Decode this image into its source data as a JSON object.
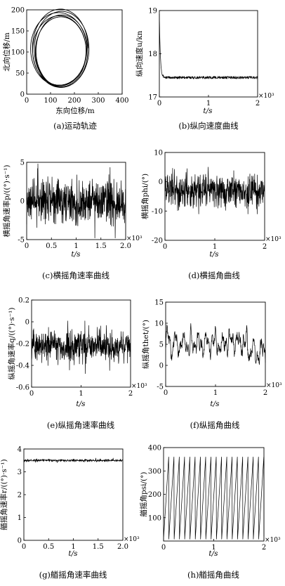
{
  "chart_data": [
    {
      "id": "a",
      "type": "line",
      "caption": "(a)运动轨迹",
      "xlabel": "东向位移/m",
      "ylabel": "北向位移/m",
      "xlim": [
        0,
        400
      ],
      "ylim": [
        0,
        200
      ],
      "xticks": [
        0,
        100,
        200,
        300,
        400
      ],
      "yticks": [
        0,
        50,
        100,
        150,
        200
      ],
      "multiplier": "",
      "series": [
        {
          "kind": "orbit",
          "center": [
            140,
            105
          ],
          "rx": [
            105,
            118
          ],
          "ry": [
            82,
            93
          ],
          "loops": 6
        }
      ]
    },
    {
      "id": "b",
      "type": "line",
      "caption": "(b)纵向速度曲线",
      "xlabel": "t/s",
      "ylabel": "纵向速度u/kn",
      "xlim": [
        0,
        2
      ],
      "ylim": [
        17,
        19
      ],
      "xticks": [
        0,
        1,
        2
      ],
      "yticks": [
        17,
        18,
        19
      ],
      "multiplier": "×10³",
      "series": [
        {
          "kind": "settle",
          "start": 18.95,
          "mean": 17.45,
          "noise": 0.03,
          "decay": 0.02
        }
      ]
    },
    {
      "id": "c",
      "type": "line",
      "caption": "(c)横摇角速率曲线",
      "xlabel": "t/s",
      "ylabel": "横摇角速率p/((°)·s⁻¹)",
      "xlim": [
        0,
        2
      ],
      "ylim": [
        -5,
        5
      ],
      "xticks": [
        0,
        0.5,
        1,
        1.5,
        2.0
      ],
      "xticklabels": [
        "0",
        "0.5",
        "1",
        "1.5",
        "2.0"
      ],
      "yticks": [
        -5,
        0,
        5
      ],
      "multiplier": "×10³",
      "series": [
        {
          "kind": "noise",
          "mean": 0,
          "amplitude": 2.0,
          "max": 4.8
        }
      ]
    },
    {
      "id": "d",
      "type": "line",
      "caption": "(d)横摇角曲线",
      "xlabel": "t/s",
      "ylabel": "横摇角phi/(°)",
      "xlim": [
        0,
        2
      ],
      "ylim": [
        -20,
        10
      ],
      "xticks": [
        0,
        1,
        2
      ],
      "yticks": [
        -20,
        -10,
        0,
        10
      ],
      "multiplier": "×10³",
      "series": [
        {
          "kind": "noise",
          "mean": -3,
          "amplitude": 4.5,
          "max": 8
        }
      ]
    },
    {
      "id": "e",
      "type": "line",
      "caption": "(e)纵摇角速率曲线",
      "xlabel": "t/s",
      "ylabel": "纵摇角速率q/((°)·s⁻¹)",
      "xlim": [
        0,
        2
      ],
      "ylim": [
        -0.6,
        0.2
      ],
      "xticks": [
        0,
        1,
        2
      ],
      "yticks": [
        -0.6,
        -0.4,
        -0.2,
        0,
        0.2
      ],
      "multiplier": "×10³",
      "series": [
        {
          "kind": "noise",
          "mean": -0.22,
          "amplitude": 0.1,
          "max": 0.3
        }
      ]
    },
    {
      "id": "f",
      "type": "line",
      "caption": "(f)纵摇角曲线",
      "xlabel": "t/s",
      "ylabel": "纵摇角thet/(°)",
      "xlim": [
        0,
        2
      ],
      "ylim": [
        -5,
        15
      ],
      "xticks": [
        0,
        1,
        2
      ],
      "yticks": [
        -5,
        0,
        5,
        10,
        15
      ],
      "multiplier": "×10³",
      "series": [
        {
          "kind": "wave",
          "mean": 5.5,
          "amplitude": 2.8,
          "max": 5
        }
      ]
    },
    {
      "id": "g",
      "type": "line",
      "caption": "(g)艏摇角速率曲线",
      "xlabel": "t/s",
      "ylabel": "艏摇角速率r/((°)·s⁻¹)",
      "xlim": [
        0,
        2
      ],
      "ylim": [
        0,
        4
      ],
      "xticks": [
        0,
        0.5,
        1,
        1.5,
        2.0
      ],
      "xticklabels": [
        "0",
        "0.5",
        "1",
        "1.5",
        "2.0"
      ],
      "yticks": [
        0,
        1,
        2,
        3,
        4
      ],
      "multiplier": "×10³",
      "series": [
        {
          "kind": "noise",
          "mean": 3.5,
          "amplitude": 0.04,
          "max": 0.1
        }
      ]
    },
    {
      "id": "h",
      "type": "line",
      "caption": "(h)艏摇角曲线",
      "xlabel": "t/s",
      "ylabel": "艏摇角psi/(°)",
      "xlim": [
        0,
        2
      ],
      "ylim": [
        0,
        400
      ],
      "xticks": [
        0,
        1,
        2
      ],
      "yticks": [
        100,
        200,
        300,
        400
      ],
      "multiplier": "×10³",
      "series": [
        {
          "kind": "sawtooth",
          "min": 0,
          "max": 360,
          "cycles": 19
        }
      ]
    }
  ]
}
